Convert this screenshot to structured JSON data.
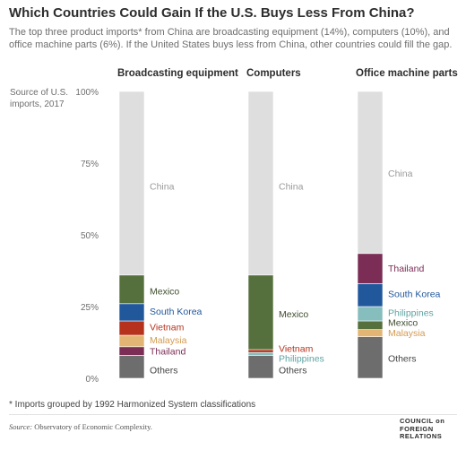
{
  "header": {
    "title": "Which Countries Could Gain If the U.S. Buys Less From China?",
    "subtitle": "The top three product imports* from China are broadcasting equipment (14%), computers (10%), and office machine parts (6%). If the United States buys less from China, other countries could fill the gap."
  },
  "footer": {
    "footnote": "* Imports grouped by 1992 Harmonized System classifications",
    "source_label": "Source:",
    "source_text": "Observatory of Economic Complexity.",
    "logo_line1": "COUNCIL on",
    "logo_line2": "FOREIGN",
    "logo_line3": "RELATIONS"
  },
  "chart_data": {
    "type": "bar",
    "stacked": true,
    "ylabel": "Source of U.S. imports, 2017",
    "ylim": [
      0,
      100
    ],
    "yticks": [
      0,
      25,
      50,
      75,
      100
    ],
    "ytick_labels": [
      "0%",
      "25%",
      "50%",
      "75%",
      "100%"
    ],
    "grid": false,
    "legend": "inline labels beside segments",
    "categories": [
      {
        "name": "Broadcasting equipment",
        "segments": [
          {
            "label": "Others",
            "value": 8,
            "color": "#6d6d6d"
          },
          {
            "label": "Thailand",
            "value": 3,
            "color": "#7b2d55"
          },
          {
            "label": "Malaysia",
            "value": 4,
            "color": "#e3b574"
          },
          {
            "label": "Vietnam",
            "value": 5,
            "color": "#b6321c"
          },
          {
            "label": "South Korea",
            "value": 6,
            "color": "#21589c"
          },
          {
            "label": "Mexico",
            "value": 10,
            "color": "#56703d"
          },
          {
            "label": "China",
            "value": 64,
            "color": "#dedede"
          }
        ]
      },
      {
        "name": "Computers",
        "segments": [
          {
            "label": "Others",
            "value": 8,
            "color": "#6d6d6d"
          },
          {
            "label": "Philippines",
            "value": 1,
            "color": "#86bdbd"
          },
          {
            "label": "Vietnam",
            "value": 1,
            "color": "#b6321c"
          },
          {
            "label": "Mexico",
            "value": 26,
            "color": "#56703d"
          },
          {
            "label": "China",
            "value": 64,
            "color": "#dedede"
          }
        ]
      },
      {
        "name": "Office machine parts",
        "segments": [
          {
            "label": "Others",
            "value": 14.5,
            "color": "#6d6d6d"
          },
          {
            "label": "Malaysia",
            "value": 2.5,
            "color": "#e3b574"
          },
          {
            "label": "Mexico",
            "value": 3,
            "color": "#56703d"
          },
          {
            "label": "Philippines",
            "value": 5,
            "color": "#86bdbd"
          },
          {
            "label": "South Korea",
            "value": 8,
            "color": "#21589c"
          },
          {
            "label": "Thailand",
            "value": 10.5,
            "color": "#7b2d55"
          },
          {
            "label": "China",
            "value": 56.5,
            "color": "#dedede"
          }
        ]
      }
    ]
  }
}
